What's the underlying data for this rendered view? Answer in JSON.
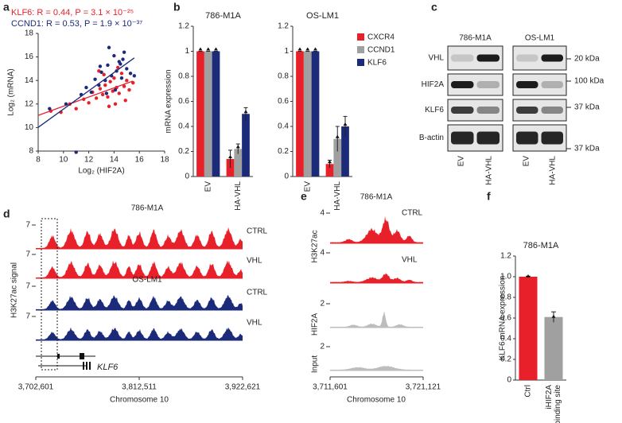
{
  "panel_labels": [
    "a",
    "b",
    "c",
    "d",
    "e",
    "f"
  ],
  "chart_data": [
    {
      "type": "scatter",
      "annotations": [
        "KLF6: R = 0.44, P = 3.1 × 10⁻²⁵",
        "CCND1: R = 0.53, P = 1.9 × 10⁻³⁷"
      ],
      "xlabel": "Log₂ (HIF2A)",
      "ylabel": "Log₂ (mRNA)",
      "xlim": [
        8,
        18
      ],
      "ylim": [
        8,
        18
      ],
      "xticks": [
        8,
        10,
        12,
        14,
        16,
        18
      ],
      "yticks": [
        8,
        10,
        12,
        14,
        16,
        18
      ],
      "series": [
        {
          "color": "#e8202a",
          "x": [
            9.0,
            9.8,
            10.5,
            11.0,
            11.6,
            12.0,
            12.3,
            12.6,
            12.9,
            13.1,
            13.3,
            13.5,
            13.7,
            13.9,
            14.0,
            14.2,
            14.4,
            14.6,
            14.8,
            15.0,
            15.2,
            15.5,
            12.8,
            13.6,
            14.3,
            14.9,
            13.2,
            14.1
          ],
          "y": [
            11.4,
            11.3,
            12.0,
            11.6,
            12.4,
            12.1,
            13.0,
            12.5,
            13.3,
            12.8,
            13.6,
            12.6,
            13.9,
            13.1,
            14.2,
            13.4,
            12.9,
            14.6,
            13.5,
            14.0,
            13.2,
            13.8,
            14.8,
            11.8,
            15.1,
            12.3,
            14.5,
            12.0
          ]
        },
        {
          "color": "#1c2a7a",
          "x": [
            8.9,
            10.2,
            11.0,
            11.4,
            11.8,
            12.2,
            12.5,
            12.8,
            13.0,
            13.3,
            13.5,
            13.8,
            14.0,
            14.2,
            14.4,
            14.6,
            14.8,
            15.0,
            15.3,
            13.6,
            14.1,
            12.9,
            14.7,
            15.6,
            13.4,
            14.5
          ],
          "y": [
            11.6,
            12.0,
            7.9,
            12.8,
            13.4,
            13.0,
            14.1,
            13.6,
            14.7,
            14.0,
            15.3,
            14.4,
            16.1,
            14.8,
            15.6,
            14.2,
            16.4,
            15.0,
            14.6,
            16.8,
            13.2,
            15.2,
            15.8,
            14.4,
            12.9,
            15.4
          ]
        }
      ]
    },
    {
      "type": "bar",
      "title": "786-M1A",
      "ylabel": "mRNA expression",
      "categories": [
        "EV",
        "HA-VHL"
      ],
      "ylim": [
        0,
        1.2
      ],
      "yticks": [
        0,
        0.2,
        0.4,
        0.6,
        0.8,
        1,
        1.2
      ],
      "series": [
        {
          "color": "#e8202a",
          "values": [
            1,
            0.14
          ],
          "errors": [
            0,
            0.07
          ]
        },
        {
          "color": "#a0a0a0",
          "values": [
            1,
            0.22
          ],
          "errors": [
            0,
            0.04
          ]
        },
        {
          "color": "#1c2a7a",
          "values": [
            1,
            0.5
          ],
          "errors": [
            0,
            0.05
          ]
        }
      ]
    },
    {
      "type": "bar",
      "title": "OS-LM1",
      "categories": [
        "EV",
        "HA-VHL"
      ],
      "ylim": [
        0,
        1.2
      ],
      "yticks": [
        0,
        0.2,
        0.4,
        0.6,
        0.8,
        1,
        1.2
      ],
      "series": [
        {
          "name": "CXCR4",
          "color": "#e8202a",
          "values": [
            1,
            0.1
          ],
          "errors": [
            0,
            0.03
          ]
        },
        {
          "name": "CCND1",
          "color": "#a0a0a0",
          "values": [
            1,
            0.3
          ],
          "errors": [
            0,
            0.1
          ]
        },
        {
          "name": "KLF6",
          "color": "#1c2a7a",
          "values": [
            1,
            0.4
          ],
          "errors": [
            0,
            0.08
          ]
        }
      ]
    },
    {
      "type": "bar",
      "title": "786-M1A",
      "ylabel": "KLF6 mRNA expression",
      "categories": [
        [
          "Ctrl"
        ],
        [
          "iHIF2A",
          "binding site"
        ]
      ],
      "colors": [
        "#e8202a",
        "#a0a0a0"
      ],
      "values": [
        1,
        0.61
      ],
      "errors": [
        0.005,
        0.05
      ],
      "ylim": [
        0,
        1.2
      ],
      "yticks": [
        0,
        0.2,
        0.4,
        0.6,
        0.8,
        {
          "value": 1,
          "label": "1.0"
        },
        1.2
      ]
    }
  ],
  "blot": {
    "cell_lines": [
      "786-M1A",
      "OS-LM1"
    ],
    "rows": [
      "VHL",
      "HIF2A",
      "KLF6",
      "B-actin"
    ],
    "markers": [
      "20 kDa",
      "100 kDa",
      "37 kDa",
      "37 kDa"
    ],
    "lanes": [
      "EV",
      "HA-VHL"
    ]
  },
  "genome_d": {
    "titles": [
      "786-M1A",
      "OS-LM1"
    ],
    "track_labels": [
      "CTRL",
      "VHL",
      "CTRL",
      "VHL"
    ],
    "scale_labels": [
      "7",
      "7",
      "7",
      "7"
    ],
    "ylabel": "H3K27ac signal",
    "gene": "KLF6",
    "xticks": [
      "3,702,601",
      "3,812,511",
      "3,922,621"
    ],
    "xlabel": "Chromosome 10"
  },
  "genome_e": {
    "title": "786-M1A",
    "track_labels": [
      "CTRL",
      "VHL"
    ],
    "row_labels": [
      "H3K27ac",
      "HIF2A",
      "Input"
    ],
    "scale_labels": [
      "4",
      "4",
      "2",
      "2"
    ],
    "xticks": [
      "3,711,601",
      "3,721,121"
    ],
    "xlabel": "Chromosome 10"
  }
}
